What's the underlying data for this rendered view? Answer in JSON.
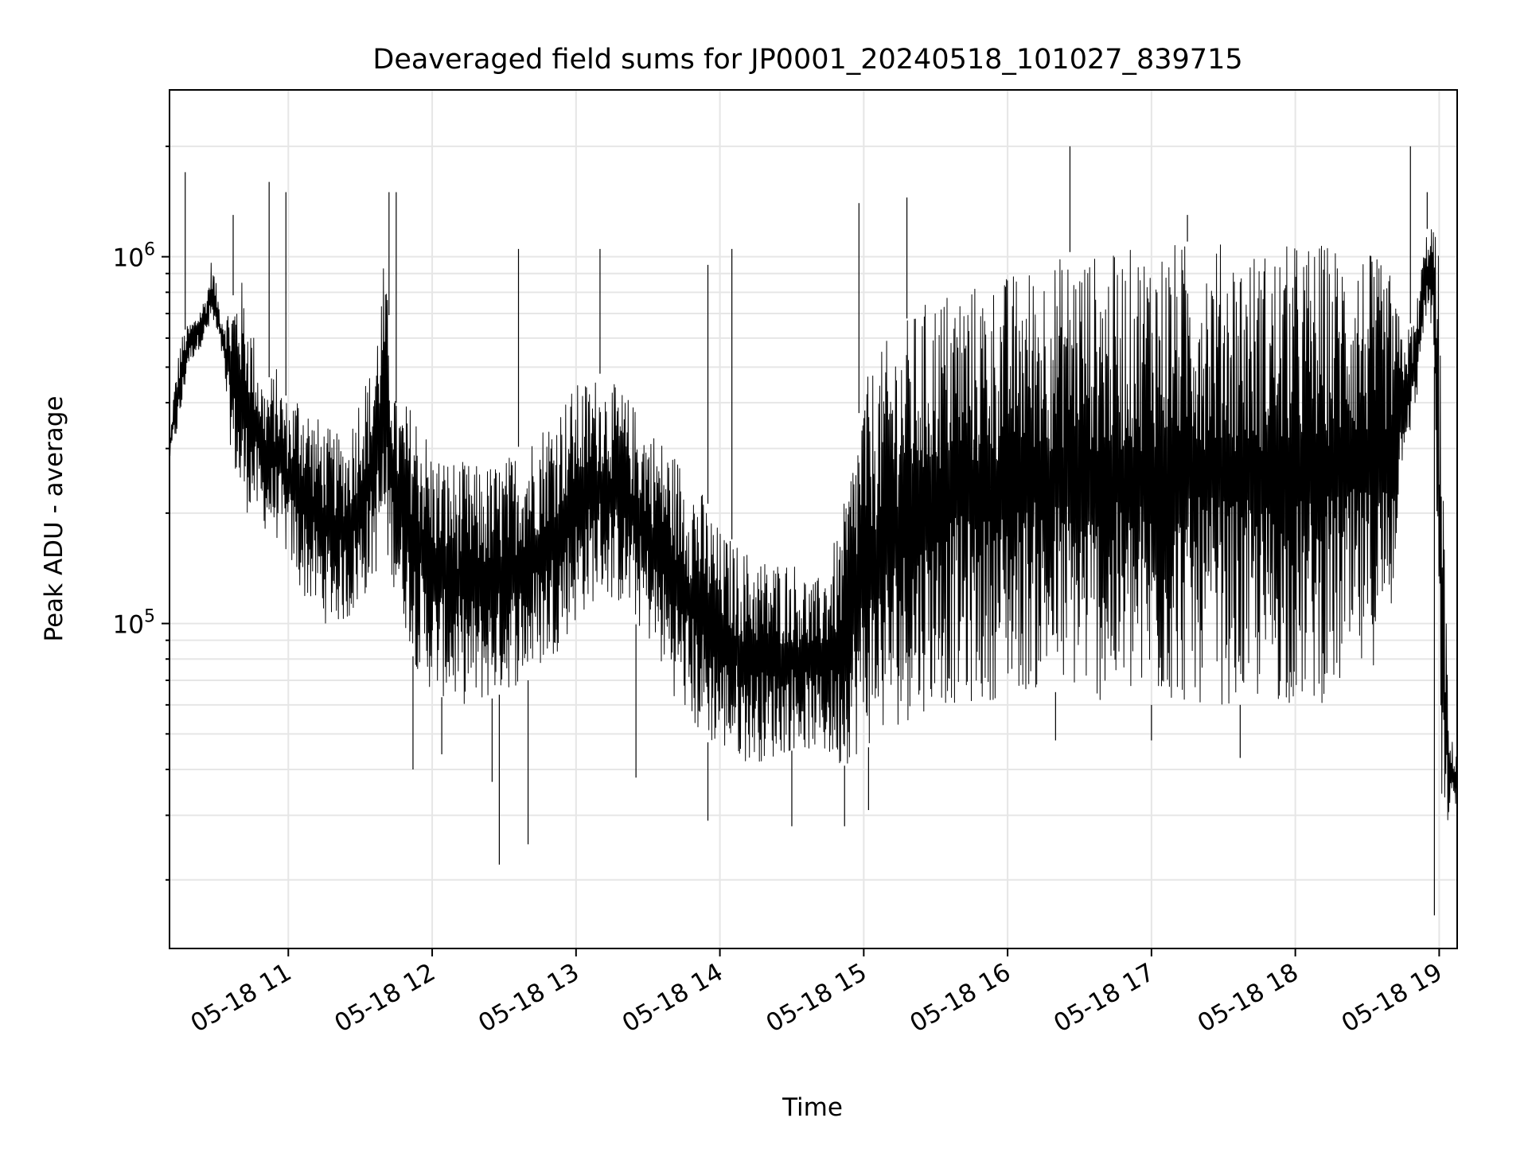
{
  "chart_data": {
    "type": "line",
    "title": "Deaveraged field sums for JP0001_20240518_101027_839715",
    "xlabel": "Time",
    "ylabel": "Peak ADU - average",
    "y_scale": "log",
    "grid": true,
    "grid_minor_y": true,
    "line_color": "#000000",
    "grid_color": "#e6e6e6",
    "xlim": [
      "2024-05-18T10:10:27",
      "2024-05-18T19:07:30"
    ],
    "ylim": [
      13000,
      2850000
    ],
    "x_ticks": [
      {
        "value": "2024-05-18T11:00:00",
        "label": "05-18 11"
      },
      {
        "value": "2024-05-18T12:00:00",
        "label": "05-18 12"
      },
      {
        "value": "2024-05-18T13:00:00",
        "label": "05-18 13"
      },
      {
        "value": "2024-05-18T14:00:00",
        "label": "05-18 14"
      },
      {
        "value": "2024-05-18T15:00:00",
        "label": "05-18 15"
      },
      {
        "value": "2024-05-18T16:00:00",
        "label": "05-18 16"
      },
      {
        "value": "2024-05-18T17:00:00",
        "label": "05-18 17"
      },
      {
        "value": "2024-05-18T18:00:00",
        "label": "05-18 18"
      },
      {
        "value": "2024-05-18T19:00:00",
        "label": "05-18 19"
      }
    ],
    "y_ticks": [
      {
        "value": 100000,
        "mantissa": "10",
        "exp": "5"
      },
      {
        "value": 1000000,
        "mantissa": "10",
        "exp": "6"
      }
    ],
    "series": [
      {
        "x": [
          "2024-05-18T10:10:27",
          "2024-05-18T10:12:00",
          "2024-05-18T10:15:00",
          "2024-05-18T10:18:00",
          "2024-05-18T10:22:00",
          "2024-05-18T10:26:00",
          "2024-05-18T10:28:00",
          "2024-05-18T10:32:00",
          "2024-05-18T10:36:00",
          "2024-05-18T10:40:00",
          "2024-05-18T10:45:00",
          "2024-05-18T10:50:00",
          "2024-05-18T10:55:00",
          "2024-05-18T11:00:00",
          "2024-05-18T11:05:00",
          "2024-05-18T11:10:00",
          "2024-05-18T11:15:00",
          "2024-05-18T11:20:00",
          "2024-05-18T11:25:00",
          "2024-05-18T11:30:00",
          "2024-05-18T11:35:00",
          "2024-05-18T11:40:00",
          "2024-05-18T11:45:00",
          "2024-05-18T11:50:00",
          "2024-05-18T11:55:00",
          "2024-05-18T12:00:00",
          "2024-05-18T12:10:00",
          "2024-05-18T12:20:00",
          "2024-05-18T12:30:00",
          "2024-05-18T12:40:00",
          "2024-05-18T12:50:00",
          "2024-05-18T13:00:00",
          "2024-05-18T13:10:00",
          "2024-05-18T13:20:00",
          "2024-05-18T13:30:00",
          "2024-05-18T13:40:00",
          "2024-05-18T13:50:00",
          "2024-05-18T14:00:00",
          "2024-05-18T14:10:00",
          "2024-05-18T14:20:00",
          "2024-05-18T14:30:00",
          "2024-05-18T14:40:00",
          "2024-05-18T14:50:00",
          "2024-05-18T15:00:00",
          "2024-05-18T15:10:00",
          "2024-05-18T15:20:00",
          "2024-05-18T15:30:00",
          "2024-05-18T15:40:00",
          "2024-05-18T15:50:00",
          "2024-05-18T16:00:00",
          "2024-05-18T16:10:00",
          "2024-05-18T16:20:00",
          "2024-05-18T16:30:00",
          "2024-05-18T16:40:00",
          "2024-05-18T16:50:00",
          "2024-05-18T17:00:00",
          "2024-05-18T17:10:00",
          "2024-05-18T17:20:00",
          "2024-05-18T17:30:00",
          "2024-05-18T17:40:00",
          "2024-05-18T17:50:00",
          "2024-05-18T18:00:00",
          "2024-05-18T18:10:00",
          "2024-05-18T18:20:00",
          "2024-05-18T18:30:00",
          "2024-05-18T18:40:00",
          "2024-05-18T18:45:00",
          "2024-05-18T18:50:00",
          "2024-05-18T18:53:00",
          "2024-05-18T18:56:00",
          "2024-05-18T18:58:00",
          "2024-05-18T19:00:00",
          "2024-05-18T19:02:00",
          "2024-05-18T19:04:00",
          "2024-05-18T19:07:30"
        ],
        "y_upper": [
          300000,
          420000,
          600000,
          650000,
          700000,
          800000,
          1000000,
          700000,
          750000,
          900000,
          650000,
          450000,
          500000,
          400000,
          450000,
          380000,
          350000,
          330000,
          330000,
          450000,
          500000,
          1000000,
          400000,
          400000,
          380000,
          300000,
          280000,
          270000,
          280000,
          320000,
          380000,
          450000,
          480000,
          430000,
          350000,
          300000,
          250000,
          180000,
          160000,
          150000,
          150000,
          130000,
          180000,
          450000,
          600000,
          700000,
          800000,
          850000,
          850000,
          900000,
          950000,
          1000000,
          1050000,
          1000000,
          1050000,
          1100000,
          1100000,
          1100000,
          1100000,
          1050000,
          1050000,
          1100000,
          1100000,
          1100000,
          1050000,
          900000,
          600000,
          700000,
          1000000,
          1300000,
          1200000,
          1000000,
          200000,
          50000,
          45000
        ],
        "y_lower": [
          280000,
          300000,
          350000,
          500000,
          550000,
          600000,
          650000,
          550000,
          300000,
          200000,
          200000,
          180000,
          170000,
          150000,
          120000,
          110000,
          100000,
          100000,
          100000,
          110000,
          130000,
          150000,
          120000,
          90000,
          70000,
          65000,
          60000,
          60000,
          65000,
          70000,
          80000,
          100000,
          120000,
          110000,
          90000,
          65000,
          50000,
          45000,
          42000,
          42000,
          45000,
          45000,
          40000,
          45000,
          50000,
          55000,
          60000,
          60000,
          60000,
          65000,
          65000,
          65000,
          65000,
          60000,
          60000,
          60000,
          60000,
          60000,
          60000,
          60000,
          60000,
          60000,
          60000,
          65000,
          70000,
          100000,
          300000,
          350000,
          600000,
          700000,
          500000,
          40000,
          20000,
          30000,
          32000
        ],
        "spikes_high": [
          {
            "x": "2024-05-18T10:17:00",
            "y": 1700000
          },
          {
            "x": "2024-05-18T10:37:00",
            "y": 1300000
          },
          {
            "x": "2024-05-18T10:52:00",
            "y": 1600000
          },
          {
            "x": "2024-05-18T10:59:00",
            "y": 1500000
          },
          {
            "x": "2024-05-18T11:42:00",
            "y": 1500000
          },
          {
            "x": "2024-05-18T11:45:00",
            "y": 1500000
          },
          {
            "x": "2024-05-18T12:36:00",
            "y": 1050000
          },
          {
            "x": "2024-05-18T13:10:00",
            "y": 1050000
          },
          {
            "x": "2024-05-18T13:55:00",
            "y": 950000
          },
          {
            "x": "2024-05-18T14:05:00",
            "y": 1050000
          },
          {
            "x": "2024-05-18T14:58:00",
            "y": 1400000
          },
          {
            "x": "2024-05-18T15:18:00",
            "y": 1450000
          },
          {
            "x": "2024-05-18T16:26:00",
            "y": 2000000
          },
          {
            "x": "2024-05-18T17:15:00",
            "y": 1300000
          },
          {
            "x": "2024-05-18T18:48:00",
            "y": 2000000
          },
          {
            "x": "2024-05-18T18:55:00",
            "y": 1500000
          }
        ],
        "spikes_low": [
          {
            "x": "2024-05-18T11:52:00",
            "y": 40000
          },
          {
            "x": "2024-05-18T12:04:00",
            "y": 44000
          },
          {
            "x": "2024-05-18T12:25:00",
            "y": 37000
          },
          {
            "x": "2024-05-18T12:28:00",
            "y": 22000
          },
          {
            "x": "2024-05-18T12:40:00",
            "y": 25000
          },
          {
            "x": "2024-05-18T13:25:00",
            "y": 38000
          },
          {
            "x": "2024-05-18T13:55:00",
            "y": 29000
          },
          {
            "x": "2024-05-18T14:30:00",
            "y": 28000
          },
          {
            "x": "2024-05-18T14:52:00",
            "y": 28000
          },
          {
            "x": "2024-05-18T15:02:00",
            "y": 31000
          },
          {
            "x": "2024-05-18T16:20:00",
            "y": 48000
          },
          {
            "x": "2024-05-18T17:00:00",
            "y": 48000
          },
          {
            "x": "2024-05-18T17:37:00",
            "y": 43000
          },
          {
            "x": "2024-05-18T18:58:00",
            "y": 16000
          }
        ]
      }
    ]
  }
}
